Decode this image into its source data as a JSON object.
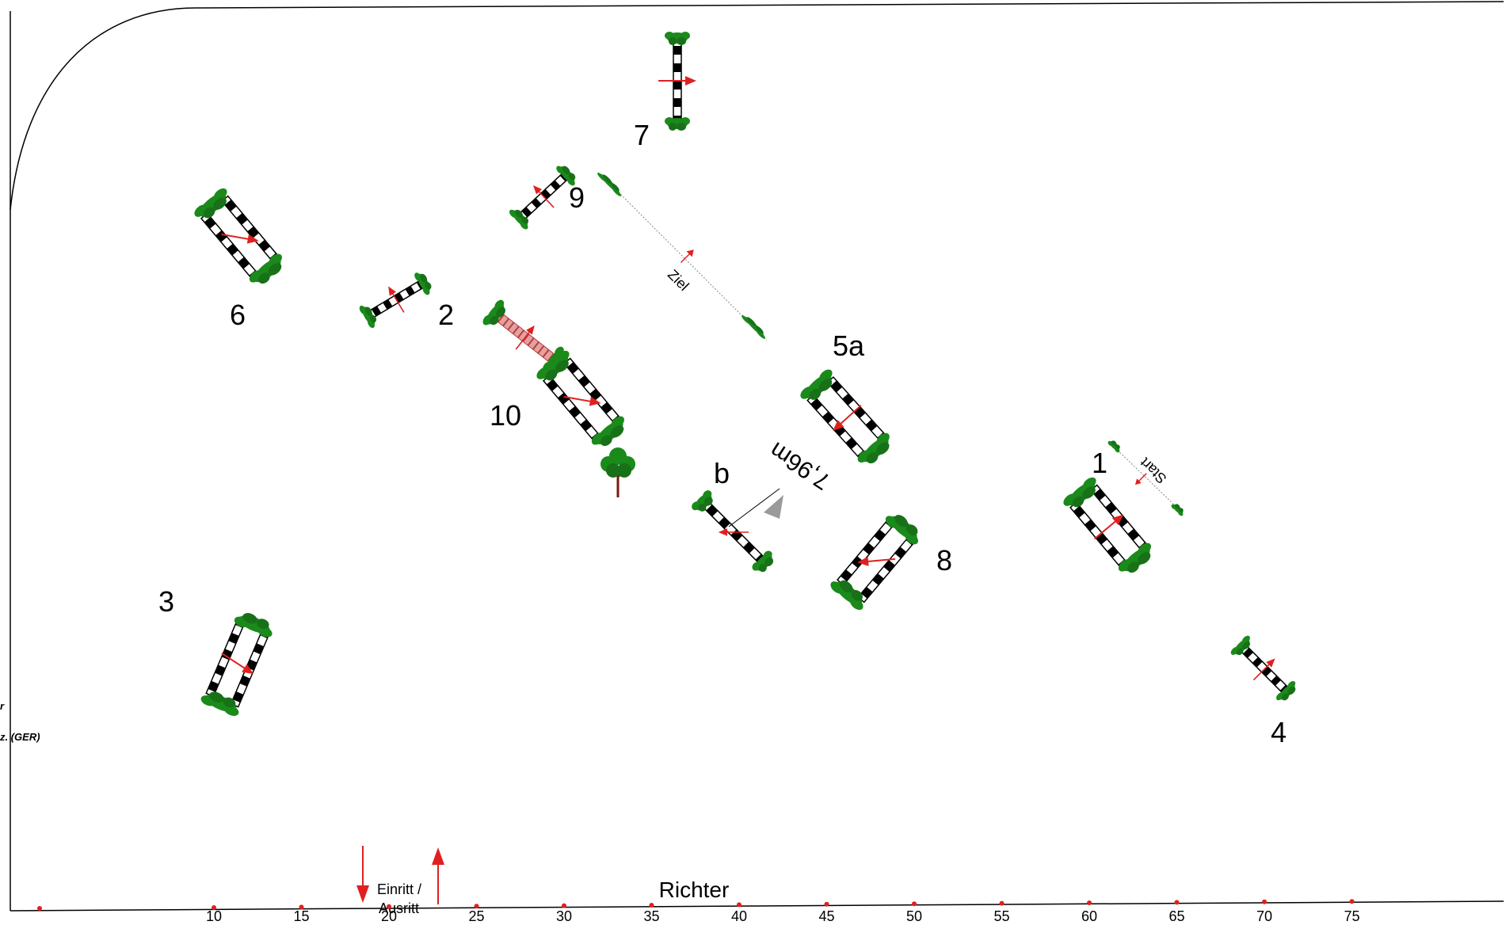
{
  "obstacle_numbers": {
    "n1": "1",
    "n2": "2",
    "n3": "3",
    "n4": "4",
    "n5a": "5a",
    "n5b": "b",
    "n6": "6",
    "n7": "7",
    "n8": "8",
    "n9": "9",
    "n10": "10"
  },
  "labels": {
    "start": "Start",
    "finish": "Ziel",
    "distance": "7,96m",
    "judge": "Richter",
    "entry_line1": "Einritt /",
    "entry_line2": "Ausritt",
    "side_text_1": "r",
    "side_text_2": "z. (GER)"
  },
  "scale_ticks": [
    "10",
    "15",
    "20",
    "25",
    "30",
    "35",
    "40",
    "45",
    "50",
    "55",
    "60",
    "65",
    "70",
    "75"
  ],
  "colors": {
    "pole_dark": "#000000",
    "pole_light": "#ffffff",
    "foliage": "#1a8a1a",
    "arrow": "#e02020",
    "water": "#d98080",
    "tree_trunk": "#7a1a10",
    "distance_marker": "#9a9a9a"
  },
  "icons": {
    "direction": "red-arrow",
    "decoration": "tree-icon",
    "entry": "red-arrow-down",
    "exit": "red-arrow-up"
  }
}
